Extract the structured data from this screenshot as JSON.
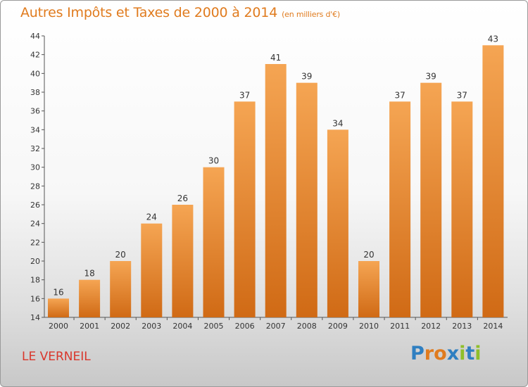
{
  "title": "Autres Impôts et Taxes de 2000 à 2014",
  "unit": "(en milliers d'€)",
  "place_name": "LE VERNEIL",
  "logo": {
    "text": "Proxiti",
    "colors": [
      "#2f7fc1",
      "#e07b1e",
      "#e07b1e",
      "#2f7fc1",
      "#8fbf2a",
      "#2f7fc1",
      "#8fbf2a"
    ]
  },
  "colors": {
    "bar_top": "#f5a553",
    "bar_bottom": "#d06a15",
    "title": "#e07b1e",
    "place": "#d9362b"
  },
  "chart_data": {
    "type": "bar",
    "title": "Autres Impôts et Taxes de 2000 à 2014",
    "subtitle": "(en milliers d'€)",
    "categories": [
      "2000",
      "2001",
      "2002",
      "2003",
      "2004",
      "2005",
      "2006",
      "2007",
      "2008",
      "2009",
      "2010",
      "2011",
      "2012",
      "2013",
      "2014"
    ],
    "values": [
      16,
      18,
      20,
      24,
      26,
      30,
      37,
      41,
      39,
      34,
      20,
      37,
      39,
      37,
      43
    ],
    "ylim": [
      14,
      44
    ],
    "yticks": [
      14,
      16,
      18,
      20,
      22,
      24,
      26,
      28,
      30,
      32,
      34,
      36,
      38,
      40,
      42,
      44
    ],
    "grid": false,
    "data_labels": true
  }
}
